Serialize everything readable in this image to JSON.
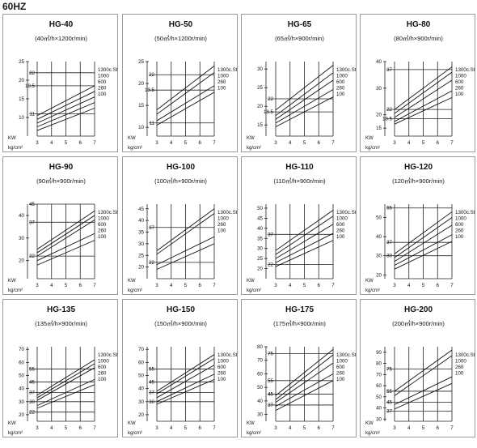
{
  "page": {
    "title": "60HZ"
  },
  "labels": {
    "y_unit": "KW",
    "x_unit": "kg/cm²"
  },
  "chart_data": [
    {
      "type": "line",
      "title": "HG-40",
      "subtitle": "(40㎥/h×1200r/min)",
      "x": [
        3,
        7
      ],
      "ylim": [
        5,
        25
      ],
      "yticks": [
        10,
        15,
        20,
        25
      ],
      "yticks_special": [
        11,
        18.5,
        22
      ],
      "xlabel": "kg/cm²",
      "ylabel": "KW",
      "series": [
        {
          "name": "1300c.St",
          "values": [
            10.5,
            18.5
          ]
        },
        {
          "name": "1000",
          "values": [
            9.5,
            17.0
          ]
        },
        {
          "name": "600",
          "values": [
            8.5,
            15.5
          ]
        },
        {
          "name": "260",
          "values": [
            7.5,
            14.0
          ]
        },
        {
          "name": "100",
          "values": [
            6.5,
            12.5
          ]
        }
      ]
    },
    {
      "type": "line",
      "title": "HG-50",
      "subtitle": "(50㎥/h×1200r/min)",
      "x": [
        3,
        7
      ],
      "ylim": [
        8,
        25
      ],
      "yticks": [
        10,
        15,
        20,
        25
      ],
      "yticks_special": [
        11,
        18.5,
        22
      ],
      "xlabel": "kg/cm²",
      "ylabel": "KW",
      "series": [
        {
          "name": "1300c.St",
          "values": [
            14.0,
            24.0
          ]
        },
        {
          "name": "1000",
          "values": [
            13.0,
            22.5
          ]
        },
        {
          "name": "260",
          "values": [
            11.5,
            19.5
          ]
        },
        {
          "name": "100",
          "values": [
            10.5,
            18.0
          ]
        }
      ]
    },
    {
      "type": "line",
      "title": "HG-65",
      "subtitle": "(65㎥/h×900r/min)",
      "x": [
        3,
        7
      ],
      "ylim": [
        12,
        32
      ],
      "yticks": [
        15,
        20,
        25,
        30
      ],
      "yticks_special": [
        18.5,
        22
      ],
      "xlabel": "kg/cm²",
      "ylabel": "KW",
      "series": [
        {
          "name": "1300c.St",
          "values": [
            19.0,
            31.0
          ]
        },
        {
          "name": "1000",
          "values": [
            17.5,
            29.0
          ]
        },
        {
          "name": "600",
          "values": [
            16.5,
            27.0
          ]
        },
        {
          "name": "260",
          "values": [
            15.5,
            24.5
          ]
        },
        {
          "name": "100",
          "values": [
            14.5,
            22.5
          ]
        }
      ]
    },
    {
      "type": "line",
      "title": "HG-80",
      "subtitle": "(80㎥/h×900r/min)",
      "x": [
        3,
        7
      ],
      "ylim": [
        12,
        40
      ],
      "yticks": [
        15,
        20,
        30,
        40
      ],
      "yticks_special": [
        18.5,
        22,
        37
      ],
      "xlabel": "kg/cm²",
      "ylabel": "KW",
      "series": [
        {
          "name": "1300c.St",
          "values": [
            22.0,
            38.0
          ]
        },
        {
          "name": "1000",
          "values": [
            20.5,
            36.0
          ]
        },
        {
          "name": "600",
          "values": [
            19.0,
            33.0
          ]
        },
        {
          "name": "260",
          "values": [
            17.5,
            29.0
          ]
        },
        {
          "name": "100",
          "values": [
            16.5,
            26.5
          ]
        }
      ]
    },
    {
      "type": "line",
      "title": "HG-90",
      "subtitle": "(90㎥/h×900r/min)",
      "x": [
        3,
        7
      ],
      "ylim": [
        12,
        45
      ],
      "yticks": [
        20,
        30,
        40
      ],
      "yticks_special": [
        22,
        37,
        45
      ],
      "xlabel": "kg/cm²",
      "ylabel": "KW",
      "series": [
        {
          "name": "1300c.St",
          "values": [
            25.0,
            42.0
          ]
        },
        {
          "name": "1000",
          "values": [
            23.5,
            40.0
          ]
        },
        {
          "name": "600",
          "values": [
            22.0,
            38.0
          ]
        },
        {
          "name": "260",
          "values": [
            20.0,
            32.0
          ]
        },
        {
          "name": "100",
          "values": [
            18.0,
            29.0
          ]
        }
      ]
    },
    {
      "type": "line",
      "title": "HG-100",
      "subtitle": "(100㎥/h×900r/min)",
      "x": [
        3,
        7
      ],
      "ylim": [
        15,
        47
      ],
      "yticks": [
        20,
        25,
        30,
        35,
        40,
        45
      ],
      "yticks_special": [
        22,
        37
      ],
      "xlabel": "kg/cm²",
      "ylabel": "KW",
      "series": [
        {
          "name": "1300c.St",
          "values": [
            27.0,
            45.0
          ]
        },
        {
          "name": "1000",
          "values": [
            25.5,
            43.0
          ]
        },
        {
          "name": "260",
          "values": [
            21.0,
            33.0
          ]
        },
        {
          "name": "100",
          "values": [
            19.0,
            30.0
          ]
        }
      ]
    },
    {
      "type": "line",
      "title": "HG-110",
      "subtitle": "(110㎥/h×900r/min)",
      "x": [
        3,
        7
      ],
      "ylim": [
        15,
        52
      ],
      "yticks": [
        20,
        25,
        30,
        35,
        40,
        45,
        50
      ],
      "yticks_special": [
        22,
        37
      ],
      "xlabel": "kg/cm²",
      "ylabel": "KW",
      "series": [
        {
          "name": "1300c.St",
          "values": [
            29.0,
            49.0
          ]
        },
        {
          "name": "1000",
          "values": [
            27.0,
            46.0
          ]
        },
        {
          "name": "600",
          "values": [
            25.0,
            42.0
          ]
        },
        {
          "name": "260",
          "values": [
            23.0,
            37.5
          ]
        },
        {
          "name": "100",
          "values": [
            21.0,
            34.0
          ]
        }
      ]
    },
    {
      "type": "line",
      "title": "HG-120",
      "subtitle": "(120㎥/h×900r/min)",
      "x": [
        3,
        7
      ],
      "ylim": [
        18,
        57
      ],
      "yticks": [
        20,
        30,
        40,
        50
      ],
      "yticks_special": [
        30,
        37,
        55
      ],
      "xlabel": "kg/cm²",
      "ylabel": "KW",
      "series": [
        {
          "name": "1300c.St",
          "values": [
            31.0,
            53.0
          ]
        },
        {
          "name": "1000",
          "values": [
            29.0,
            50.0
          ]
        },
        {
          "name": "600",
          "values": [
            27.0,
            46.0
          ]
        },
        {
          "name": "260",
          "values": [
            25.0,
            41.0
          ]
        },
        {
          "name": "100",
          "values": [
            23.0,
            37.5
          ]
        }
      ]
    },
    {
      "type": "line",
      "title": "HG-135",
      "subtitle": "(135㎥/h×900r/min)",
      "x": [
        3,
        7
      ],
      "ylim": [
        15,
        72
      ],
      "yticks": [
        20,
        30,
        40,
        50,
        60,
        70
      ],
      "yticks_special": [
        22,
        30,
        37,
        45,
        55
      ],
      "xlabel": "kg/cm²",
      "ylabel": "KW",
      "series": [
        {
          "name": "1300c.St",
          "values": [
            35.0,
            62.0
          ]
        },
        {
          "name": "1000",
          "values": [
            33.0,
            59.0
          ]
        },
        {
          "name": "600",
          "values": [
            31.0,
            56.0
          ]
        },
        {
          "name": "260",
          "values": [
            27.0,
            47.0
          ]
        },
        {
          "name": "100",
          "values": [
            25.0,
            43.0
          ]
        }
      ]
    },
    {
      "type": "line",
      "title": "HG-150",
      "subtitle": "(150㎥/h×900r/min)",
      "x": [
        3,
        7
      ],
      "ylim": [
        15,
        72
      ],
      "yticks": [
        20,
        30,
        40,
        50,
        60,
        70
      ],
      "yticks_special": [
        30,
        37,
        45,
        55
      ],
      "xlabel": "kg/cm²",
      "ylabel": "KW",
      "series": [
        {
          "name": "1300c.St",
          "values": [
            38.0,
            66.0
          ]
        },
        {
          "name": "1000",
          "values": [
            36.0,
            63.0
          ]
        },
        {
          "name": "600",
          "values": [
            33.0,
            58.0
          ]
        },
        {
          "name": "260",
          "values": [
            30.0,
            51.0
          ]
        },
        {
          "name": "100",
          "values": [
            28.0,
            47.0
          ]
        }
      ]
    },
    {
      "type": "line",
      "title": "HG-175",
      "subtitle": "(175㎥/h×900r/min)",
      "x": [
        3,
        7
      ],
      "ylim": [
        25,
        80
      ],
      "yticks": [
        30,
        40,
        50,
        60,
        70,
        80
      ],
      "yticks_special": [
        37,
        45,
        55,
        75
      ],
      "xlabel": "kg/cm²",
      "ylabel": "KW",
      "series": [
        {
          "name": "1300c.St",
          "values": [
            44.0,
            78.0
          ]
        },
        {
          "name": "1000",
          "values": [
            41.0,
            74.0
          ]
        },
        {
          "name": "600",
          "values": [
            39.0,
            68.0
          ]
        },
        {
          "name": "260",
          "values": [
            36.0,
            60.0
          ]
        },
        {
          "name": "100",
          "values": [
            33.0,
            55.0
          ]
        }
      ]
    },
    {
      "type": "line",
      "title": "HG-200",
      "subtitle": "(200㎥/h×900r/min)",
      "x": [
        3,
        7
      ],
      "ylim": [
        28,
        95
      ],
      "yticks": [
        30,
        40,
        50,
        60,
        70,
        80,
        90
      ],
      "yticks_special": [
        37,
        45,
        55,
        75
      ],
      "xlabel": "kg/cm²",
      "ylabel": "KW",
      "series": [
        {
          "name": "1300c.St",
          "values": [
            55.0,
            92.0
          ]
        },
        {
          "name": "1000",
          "values": [
            51.0,
            87.0
          ]
        },
        {
          "name": "260",
          "values": [
            43.0,
            68.0
          ]
        },
        {
          "name": "100",
          "values": [
            39.0,
            62.0
          ]
        }
      ]
    }
  ]
}
